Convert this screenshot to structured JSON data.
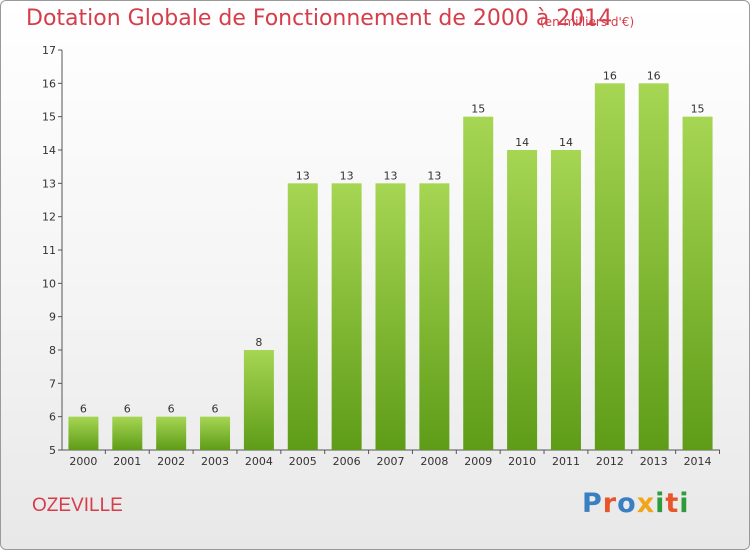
{
  "header": {
    "title": "Dotation Globale de Fonctionnement de 2000 à 2014",
    "unit": "(en milliers d'€)"
  },
  "footer": {
    "place": "OZEVILLE",
    "logo_text": "Proxiti"
  },
  "colors": {
    "title": "#d63d4a",
    "bar_top": "#a6d653",
    "bar_bottom": "#5e9c17"
  },
  "chart_data": {
    "type": "bar",
    "title": "Dotation Globale de Fonctionnement de 2000 à 2014",
    "subtitle": "(en milliers d'€)",
    "xlabel": "",
    "ylabel": "",
    "categories": [
      "2000",
      "2001",
      "2002",
      "2003",
      "2004",
      "2005",
      "2006",
      "2007",
      "2008",
      "2009",
      "2010",
      "2011",
      "2012",
      "2013",
      "2014"
    ],
    "values": [
      6,
      6,
      6,
      6,
      8,
      13,
      13,
      13,
      13,
      15,
      14,
      14,
      16,
      16,
      15
    ],
    "ylim": [
      5,
      17
    ],
    "yticks": [
      5,
      6,
      7,
      8,
      9,
      10,
      11,
      12,
      13,
      14,
      15,
      16,
      17
    ],
    "grid": false,
    "legend": "none"
  }
}
